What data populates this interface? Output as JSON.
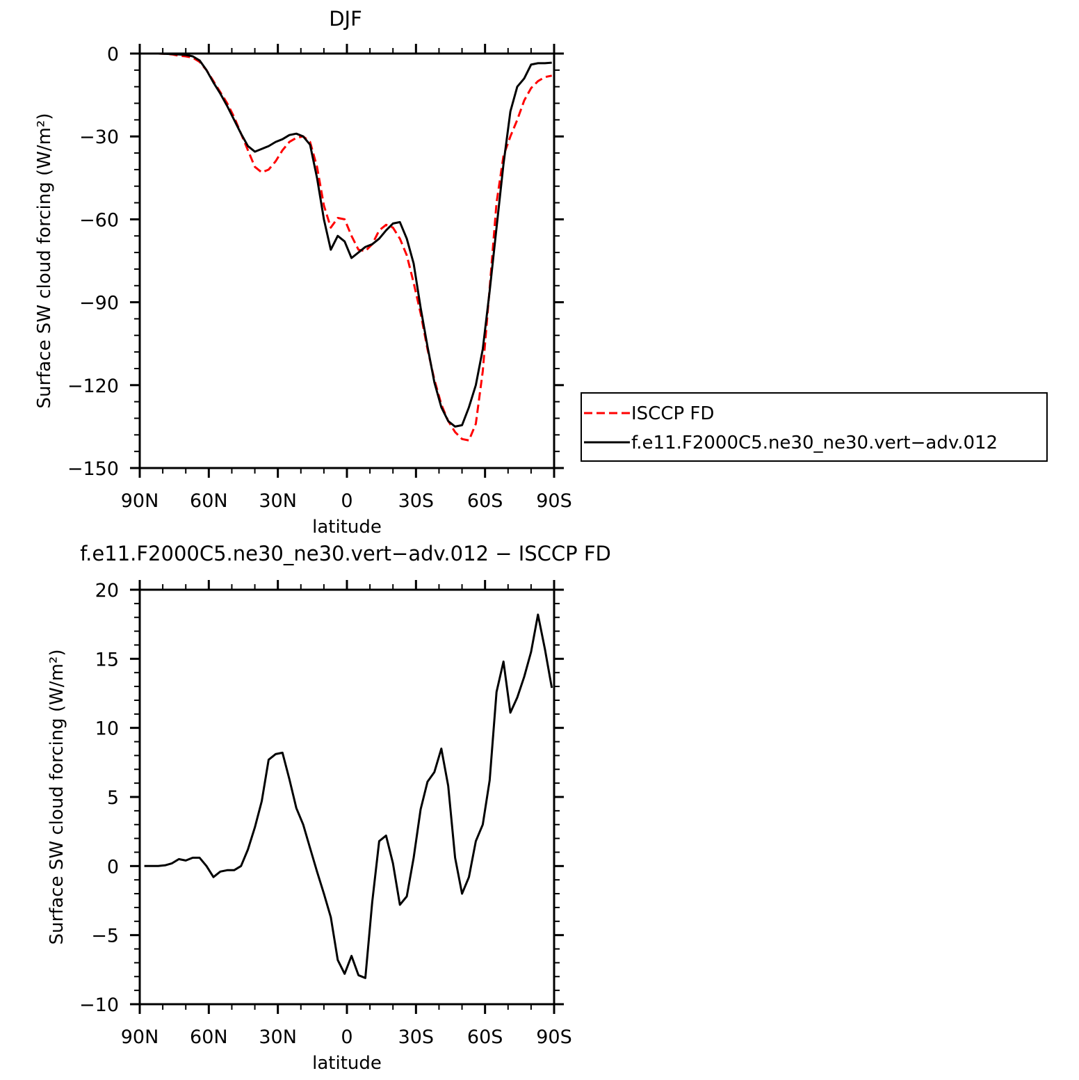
{
  "chart_data": [
    {
      "type": "line",
      "title": "DJF",
      "xlabel": "latitude",
      "ylabel": "Surface SW cloud forcing (W/m²)",
      "xlim": [
        90,
        -90
      ],
      "ylim": [
        -150,
        0
      ],
      "x_ticks": [
        {
          "value": 90,
          "label": "90N"
        },
        {
          "value": 60,
          "label": "60N"
        },
        {
          "value": 30,
          "label": "30N"
        },
        {
          "value": 0,
          "label": "0"
        },
        {
          "value": -30,
          "label": "30S"
        },
        {
          "value": -60,
          "label": "60S"
        },
        {
          "value": -90,
          "label": "90S"
        }
      ],
      "y_ticks": [
        {
          "value": 0,
          "label": "0"
        },
        {
          "value": -30,
          "label": "−30"
        },
        {
          "value": -60,
          "label": "−60"
        },
        {
          "value": -90,
          "label": "−90"
        },
        {
          "value": -120,
          "label": "−120"
        },
        {
          "value": -150,
          "label": "−150"
        }
      ],
      "legend": {
        "placement": "right"
      },
      "series": [
        {
          "name": "ISCCP FD",
          "color": "#ff0000",
          "dash": "dashed",
          "x": [
            88,
            85,
            82,
            79,
            76,
            73,
            70,
            67,
            64,
            61,
            58,
            55,
            52,
            49,
            46,
            43,
            40,
            37,
            34,
            31,
            28,
            25,
            22,
            19,
            16,
            13,
            10,
            7,
            4,
            1,
            -2,
            -5,
            -8,
            -11,
            -14,
            -17,
            -20,
            -23,
            -26,
            -29,
            -32,
            -35,
            -38,
            -41,
            -44,
            -47,
            -50,
            -53,
            -56,
            -59,
            -62,
            -65,
            -68,
            -71,
            -74,
            -77,
            -80,
            -83,
            -86,
            -89
          ],
          "values": [
            0,
            0,
            0,
            -0.1,
            -0.3,
            -0.8,
            -1,
            -1.5,
            -3,
            -6,
            -10,
            -14,
            -18,
            -23,
            -29,
            -35,
            -41,
            -43,
            -42,
            -39,
            -35,
            -32,
            -30.5,
            -30,
            -32,
            -41,
            -55,
            -63,
            -59.5,
            -60,
            -66,
            -71,
            -71.5,
            -69,
            -64,
            -62,
            -63,
            -67,
            -73,
            -83,
            -94,
            -107,
            -118,
            -127,
            -133,
            -137,
            -139.5,
            -140,
            -134,
            -115,
            -85,
            -54,
            -37,
            -30,
            -24,
            -17,
            -12.5,
            -10,
            -8.5,
            -8
          ]
        },
        {
          "name": "f.e11.F2000C5.ne30_ne30.vert−adv.012",
          "color": "#000000",
          "dash": "solid",
          "x": [
            88,
            85,
            82,
            79,
            76,
            73,
            70,
            67,
            64,
            61,
            58,
            55,
            52,
            49,
            46,
            43,
            40,
            37,
            34,
            31,
            28,
            25,
            22,
            19,
            16,
            13,
            10,
            7,
            4,
            1,
            -2,
            -5,
            -8,
            -11,
            -14,
            -17,
            -20,
            -23,
            -26,
            -29,
            -32,
            -35,
            -38,
            -41,
            -44,
            -47,
            -50,
            -53,
            -56,
            -59,
            -62,
            -65,
            -68,
            -71,
            -74,
            -77,
            -80,
            -83,
            -86,
            -89
          ],
          "values": [
            0,
            0,
            0,
            -0.1,
            -0.2,
            -0.3,
            -0.5,
            -1,
            -2.5,
            -6,
            -10.5,
            -14.5,
            -19,
            -24,
            -29,
            -33.5,
            -35.5,
            -34.5,
            -33.5,
            -32,
            -31,
            -29.5,
            -29,
            -30,
            -33,
            -45,
            -60,
            -71,
            -66,
            -68,
            -74,
            -72,
            -70,
            -69,
            -67,
            -64,
            -61.5,
            -61,
            -67,
            -76,
            -92,
            -106,
            -119,
            -128,
            -133,
            -135,
            -134.5,
            -128,
            -120,
            -107,
            -86,
            -63,
            -40,
            -21,
            -12,
            -9,
            -4,
            -3.5,
            -3.5,
            -3.3
          ]
        }
      ]
    },
    {
      "type": "line",
      "title": "f.e11.F2000C5.ne30_ne30.vert−adv.012 − ISCCP FD",
      "xlabel": "latitude",
      "ylabel": "Surface SW cloud forcing (W/m²)",
      "xlim": [
        90,
        -90
      ],
      "ylim": [
        -10,
        20
      ],
      "x_ticks": [
        {
          "value": 90,
          "label": "90N"
        },
        {
          "value": 60,
          "label": "60N"
        },
        {
          "value": 30,
          "label": "30N"
        },
        {
          "value": 0,
          "label": "0"
        },
        {
          "value": -30,
          "label": "30S"
        },
        {
          "value": -60,
          "label": "60S"
        },
        {
          "value": -90,
          "label": "90S"
        }
      ],
      "y_ticks": [
        {
          "value": 20,
          "label": "20"
        },
        {
          "value": 15,
          "label": "15"
        },
        {
          "value": 10,
          "label": "10"
        },
        {
          "value": 5,
          "label": "5"
        },
        {
          "value": 0,
          "label": "0"
        },
        {
          "value": -5,
          "label": "−5"
        },
        {
          "value": -10,
          "label": "−10"
        }
      ],
      "series": [
        {
          "color": "#000000",
          "dash": "solid",
          "x": [
            88,
            85,
            82,
            79,
            76,
            73,
            70,
            67,
            64,
            61,
            58,
            55,
            52,
            49,
            46,
            43,
            40,
            37,
            34,
            31,
            28,
            25,
            22,
            19,
            16,
            13,
            10,
            7,
            4,
            1,
            -2,
            -5,
            -8,
            -11,
            -14,
            -17,
            -20,
            -23,
            -26,
            -29,
            -32,
            -35,
            -38,
            -41,
            -44,
            -47,
            -50,
            -53,
            -56,
            -59,
            -62,
            -65,
            -68,
            -71,
            -74,
            -77,
            -80,
            -83,
            -86,
            -89
          ],
          "values": [
            0,
            0,
            0,
            0.05,
            0.2,
            0.5,
            0.4,
            0.6,
            0.6,
            0,
            -0.8,
            -0.4,
            -0.3,
            -0.3,
            0,
            1.2,
            2.8,
            4.7,
            7.7,
            8.1,
            8.2,
            6.3,
            4.2,
            3.0,
            1.3,
            -0.4,
            -2.0,
            -3.7,
            -6.8,
            -7.8,
            -6.5,
            -7.9,
            -8.1,
            -2.6,
            1.8,
            2.2,
            0.2,
            -2.8,
            -2.2,
            0.6,
            4.1,
            6.1,
            6.8,
            8.5,
            5.8,
            0.6,
            -2.0,
            -0.8,
            1.8,
            3.0,
            6.2,
            12.6,
            14.8,
            11.1,
            12.2,
            13.7,
            15.5,
            18.2,
            15.7,
            12.9
          ]
        }
      ]
    }
  ]
}
